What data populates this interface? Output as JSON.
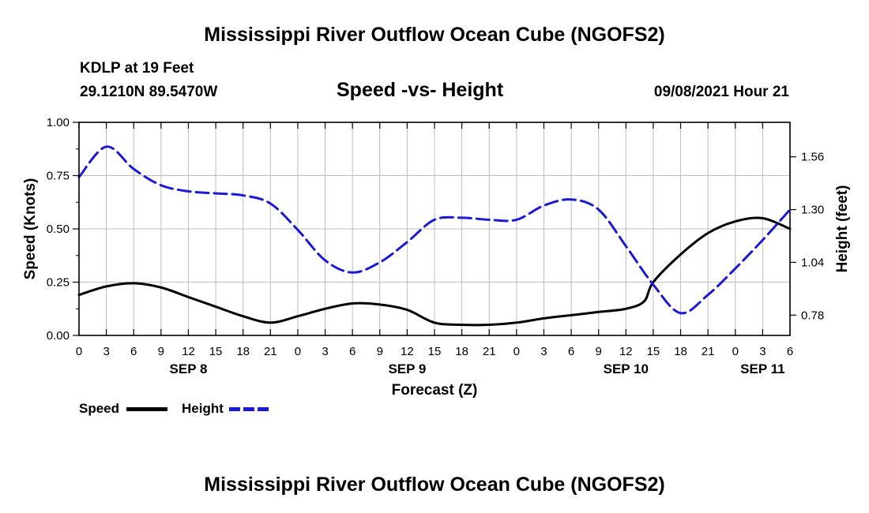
{
  "page": {
    "title_top": "Mississippi River Outflow Ocean Cube (NGOFS2)",
    "title_bottom": "Mississippi River Outflow Ocean Cube (NGOFS2)",
    "station_line": "KDLP at 19 Feet",
    "coords_line": "29.1210N  89.5470W",
    "chart_subtitle": "Speed -vs- Height",
    "timestamp": "09/08/2021 Hour 21"
  },
  "legend": {
    "speed_label": "Speed",
    "height_label": "Height"
  },
  "colors": {
    "speed": "#000000",
    "height": "#1a1ad6"
  },
  "chart_data": {
    "type": "line",
    "title": "Speed -vs- Height",
    "xlabel": "Forecast (Z)",
    "ylabel": "Speed (Knots)",
    "y2label": "Height (feet)",
    "x_range_hours": [
      0,
      78
    ],
    "ylim": [
      0,
      1.0
    ],
    "y2lim": [
      0.68,
      1.73
    ],
    "x_ticks": [
      {
        "h": 0,
        "label": "0"
      },
      {
        "h": 3,
        "label": "3"
      },
      {
        "h": 6,
        "label": "6"
      },
      {
        "h": 9,
        "label": "9"
      },
      {
        "h": 12,
        "label": "12"
      },
      {
        "h": 15,
        "label": "15"
      },
      {
        "h": 18,
        "label": "18"
      },
      {
        "h": 21,
        "label": "21"
      },
      {
        "h": 24,
        "label": "0"
      },
      {
        "h": 27,
        "label": "3"
      },
      {
        "h": 30,
        "label": "6"
      },
      {
        "h": 33,
        "label": "9"
      },
      {
        "h": 36,
        "label": "12"
      },
      {
        "h": 39,
        "label": "15"
      },
      {
        "h": 42,
        "label": "18"
      },
      {
        "h": 45,
        "label": "21"
      },
      {
        "h": 48,
        "label": "0"
      },
      {
        "h": 51,
        "label": "3"
      },
      {
        "h": 54,
        "label": "6"
      },
      {
        "h": 57,
        "label": "9"
      },
      {
        "h": 60,
        "label": "12"
      },
      {
        "h": 63,
        "label": "15"
      },
      {
        "h": 66,
        "label": "18"
      },
      {
        "h": 69,
        "label": "21"
      },
      {
        "h": 72,
        "label": "0"
      },
      {
        "h": 75,
        "label": "3"
      },
      {
        "h": 78,
        "label": "6"
      }
    ],
    "date_labels": [
      {
        "h": 12,
        "label": "SEP 8"
      },
      {
        "h": 36,
        "label": "SEP 9"
      },
      {
        "h": 60,
        "label": "SEP 10"
      },
      {
        "h": 75,
        "label": "SEP 11"
      }
    ],
    "y_ticks": [
      {
        "v": 0.0,
        "label": "0.00"
      },
      {
        "v": 0.25,
        "label": "0.25"
      },
      {
        "v": 0.5,
        "label": "0.50"
      },
      {
        "v": 0.75,
        "label": "0.75"
      },
      {
        "v": 1.0,
        "label": "1.00"
      }
    ],
    "y2_ticks": [
      {
        "v": 0.78,
        "label": "0.78"
      },
      {
        "v": 1.04,
        "label": "1.04"
      },
      {
        "v": 1.3,
        "label": "1.30"
      },
      {
        "v": 1.56,
        "label": "1.56"
      }
    ],
    "series": [
      {
        "name": "Speed",
        "axis": "left",
        "hours": [
          0,
          3,
          6,
          9,
          12,
          15,
          18,
          21,
          24,
          27,
          30,
          33,
          36,
          39,
          42,
          45,
          48,
          51,
          54,
          57,
          60,
          62,
          63,
          66,
          69,
          72,
          75,
          78
        ],
        "values": [
          0.19,
          0.23,
          0.245,
          0.225,
          0.18,
          0.135,
          0.09,
          0.06,
          0.09,
          0.125,
          0.15,
          0.145,
          0.12,
          0.06,
          0.05,
          0.05,
          0.06,
          0.08,
          0.095,
          0.11,
          0.125,
          0.16,
          0.25,
          0.38,
          0.48,
          0.535,
          0.55,
          0.5
        ]
      },
      {
        "name": "Height",
        "axis": "right",
        "hours": [
          0,
          3,
          6,
          9,
          12,
          15,
          18,
          21,
          24,
          27,
          30,
          33,
          36,
          39,
          42,
          45,
          48,
          51,
          54,
          57,
          60,
          63,
          66,
          69,
          72,
          75,
          78
        ],
        "values": [
          1.46,
          1.61,
          1.5,
          1.42,
          1.39,
          1.38,
          1.37,
          1.33,
          1.2,
          1.05,
          0.99,
          1.04,
          1.14,
          1.25,
          1.26,
          1.25,
          1.25,
          1.32,
          1.35,
          1.3,
          1.12,
          0.93,
          0.79,
          0.88,
          1.01,
          1.15,
          1.3
        ]
      }
    ]
  }
}
